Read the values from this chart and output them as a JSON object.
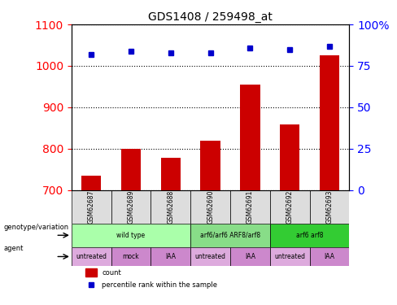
{
  "title": "GDS1408 / 259498_at",
  "samples": [
    "GSM62687",
    "GSM62689",
    "GSM62688",
    "GSM62690",
    "GSM62691",
    "GSM62692",
    "GSM62693"
  ],
  "bar_values": [
    735,
    800,
    778,
    820,
    955,
    858,
    1025
  ],
  "dot_values": [
    82,
    84,
    83,
    83,
    86,
    85,
    87
  ],
  "bar_color": "#cc0000",
  "dot_color": "#0000cc",
  "ylim_left": [
    700,
    1100
  ],
  "ylim_right": [
    0,
    100
  ],
  "yticks_left": [
    700,
    800,
    900,
    1000,
    1100
  ],
  "yticks_right": [
    0,
    25,
    50,
    75,
    100
  ],
  "ytick_labels_right": [
    "0",
    "25",
    "50",
    "75",
    "100%"
  ],
  "genotype_groups": [
    {
      "label": "wild type",
      "start": 0,
      "end": 3,
      "color": "#aaffaa"
    },
    {
      "label": "arf6/arf6 ARF8/arf8",
      "start": 3,
      "end": 5,
      "color": "#88dd88"
    },
    {
      "label": "arf6 arf8",
      "start": 5,
      "end": 7,
      "color": "#33cc33"
    }
  ],
  "agent_groups": [
    {
      "label": "untreated",
      "start": 0,
      "end": 1,
      "color": "#ddaadd"
    },
    {
      "label": "mock",
      "start": 1,
      "end": 2,
      "color": "#cc88cc"
    },
    {
      "label": "IAA",
      "start": 2,
      "end": 3,
      "color": "#cc88cc"
    },
    {
      "label": "untreated",
      "start": 3,
      "end": 4,
      "color": "#ddaadd"
    },
    {
      "label": "IAA",
      "start": 4,
      "end": 5,
      "color": "#cc88cc"
    },
    {
      "label": "untreated",
      "start": 5,
      "end": 6,
      "color": "#ddaadd"
    },
    {
      "label": "IAA",
      "start": 6,
      "end": 7,
      "color": "#cc88cc"
    }
  ],
  "legend_count_color": "#cc0000",
  "legend_dot_color": "#0000cc",
  "xlabel_genotype": "genotype/variation",
  "xlabel_agent": "agent",
  "background_color": "#ffffff"
}
